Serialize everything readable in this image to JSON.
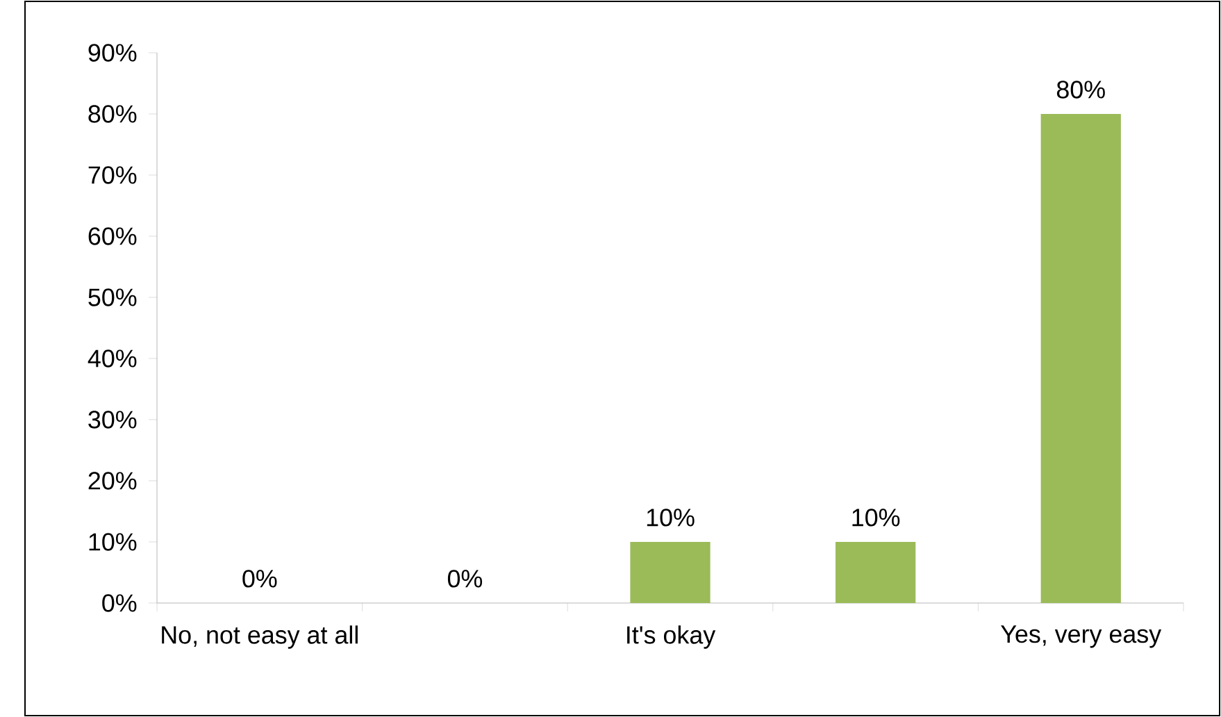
{
  "chart_data": {
    "type": "bar",
    "categories": [
      "No, not easy at all",
      null,
      "It's okay",
      null,
      "Yes, very easy"
    ],
    "values": [
      0,
      0,
      10,
      10,
      80
    ],
    "value_labels": [
      "0%",
      "0%",
      "10%",
      "10%",
      "80%"
    ],
    "color": "#9bbb59",
    "ylim": [
      0,
      90
    ],
    "yticks": [
      {
        "value": 0,
        "label": "0%"
      },
      {
        "value": 10,
        "label": "10%"
      },
      {
        "value": 20,
        "label": "20%"
      },
      {
        "value": 30,
        "label": "30%"
      },
      {
        "value": 40,
        "label": "40%"
      },
      {
        "value": 50,
        "label": "50%"
      },
      {
        "value": 60,
        "label": "60%"
      },
      {
        "value": 70,
        "label": "70%"
      },
      {
        "value": 80,
        "label": "80%"
      },
      {
        "value": 90,
        "label": "90%"
      }
    ]
  }
}
